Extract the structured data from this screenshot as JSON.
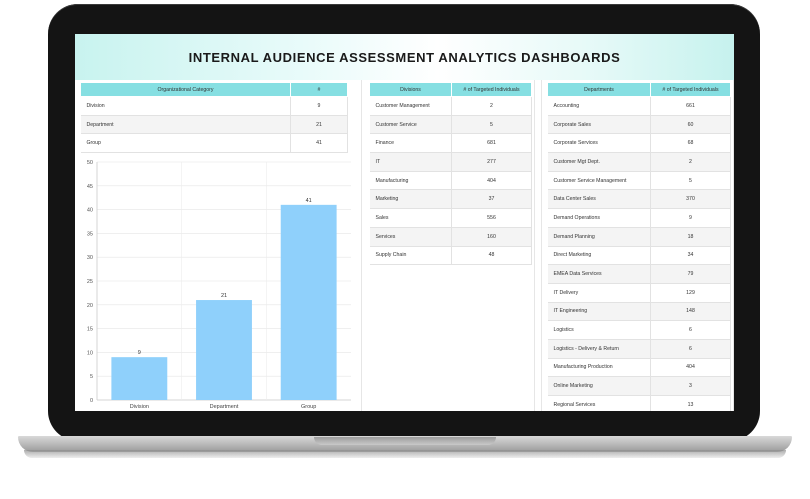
{
  "dashboard": {
    "title": "INTERNAL AUDIENCE ASSESSMENT ANALYTICS DASHBOARDS"
  },
  "org_table": {
    "headers": [
      "Organizational Category",
      "#"
    ],
    "rows": [
      {
        "label": "Division",
        "value": "9"
      },
      {
        "label": "Department",
        "value": "21"
      },
      {
        "label": "Group",
        "value": "41"
      }
    ]
  },
  "divisions_table": {
    "headers": [
      "Divisions",
      "# of Targeted Individuals"
    ],
    "rows": [
      {
        "label": "Customer Management",
        "value": "2"
      },
      {
        "label": "Customer Service",
        "value": "5"
      },
      {
        "label": "Finance",
        "value": "681"
      },
      {
        "label": "IT",
        "value": "277"
      },
      {
        "label": "Manufacturing",
        "value": "404"
      },
      {
        "label": "Marketing",
        "value": "37"
      },
      {
        "label": "Sales",
        "value": "556"
      },
      {
        "label": "Services",
        "value": "160"
      },
      {
        "label": "Supply Chain",
        "value": "48"
      }
    ]
  },
  "departments_table": {
    "headers": [
      "Departments",
      "# of Targeted Individuals"
    ],
    "rows": [
      {
        "label": "Accounting",
        "value": "661"
      },
      {
        "label": "Corporate Sales",
        "value": "60"
      },
      {
        "label": "Corporate Services",
        "value": "68"
      },
      {
        "label": "Customer Mgt Dept.",
        "value": "2"
      },
      {
        "label": "Customer Service Management",
        "value": "5"
      },
      {
        "label": "Data Center Sales",
        "value": "370"
      },
      {
        "label": "Demand Operations",
        "value": "9"
      },
      {
        "label": "Demand Planning",
        "value": "18"
      },
      {
        "label": "Direct Marketing",
        "value": "34"
      },
      {
        "label": "EMEA Data Services",
        "value": "79"
      },
      {
        "label": "IT Delivery",
        "value": "129"
      },
      {
        "label": "IT Engineering",
        "value": "148"
      },
      {
        "label": "Logistics",
        "value": "6"
      },
      {
        "label": "Logistics - Delivery & Return",
        "value": "6"
      },
      {
        "label": "Manufacturing Production",
        "value": "404"
      },
      {
        "label": "Online Marketing",
        "value": "3"
      },
      {
        "label": "Regional Services",
        "value": "13"
      }
    ]
  },
  "chart_data": {
    "type": "bar",
    "categories": [
      "Division",
      "Department",
      "Group"
    ],
    "values": [
      9,
      21,
      41
    ],
    "yticks": [
      "0",
      "5",
      "10",
      "15",
      "20",
      "25",
      "30",
      "35",
      "40",
      "45",
      "50"
    ],
    "ylim": [
      0,
      50
    ],
    "grid": true,
    "bar_color": "#8fd0fb"
  }
}
